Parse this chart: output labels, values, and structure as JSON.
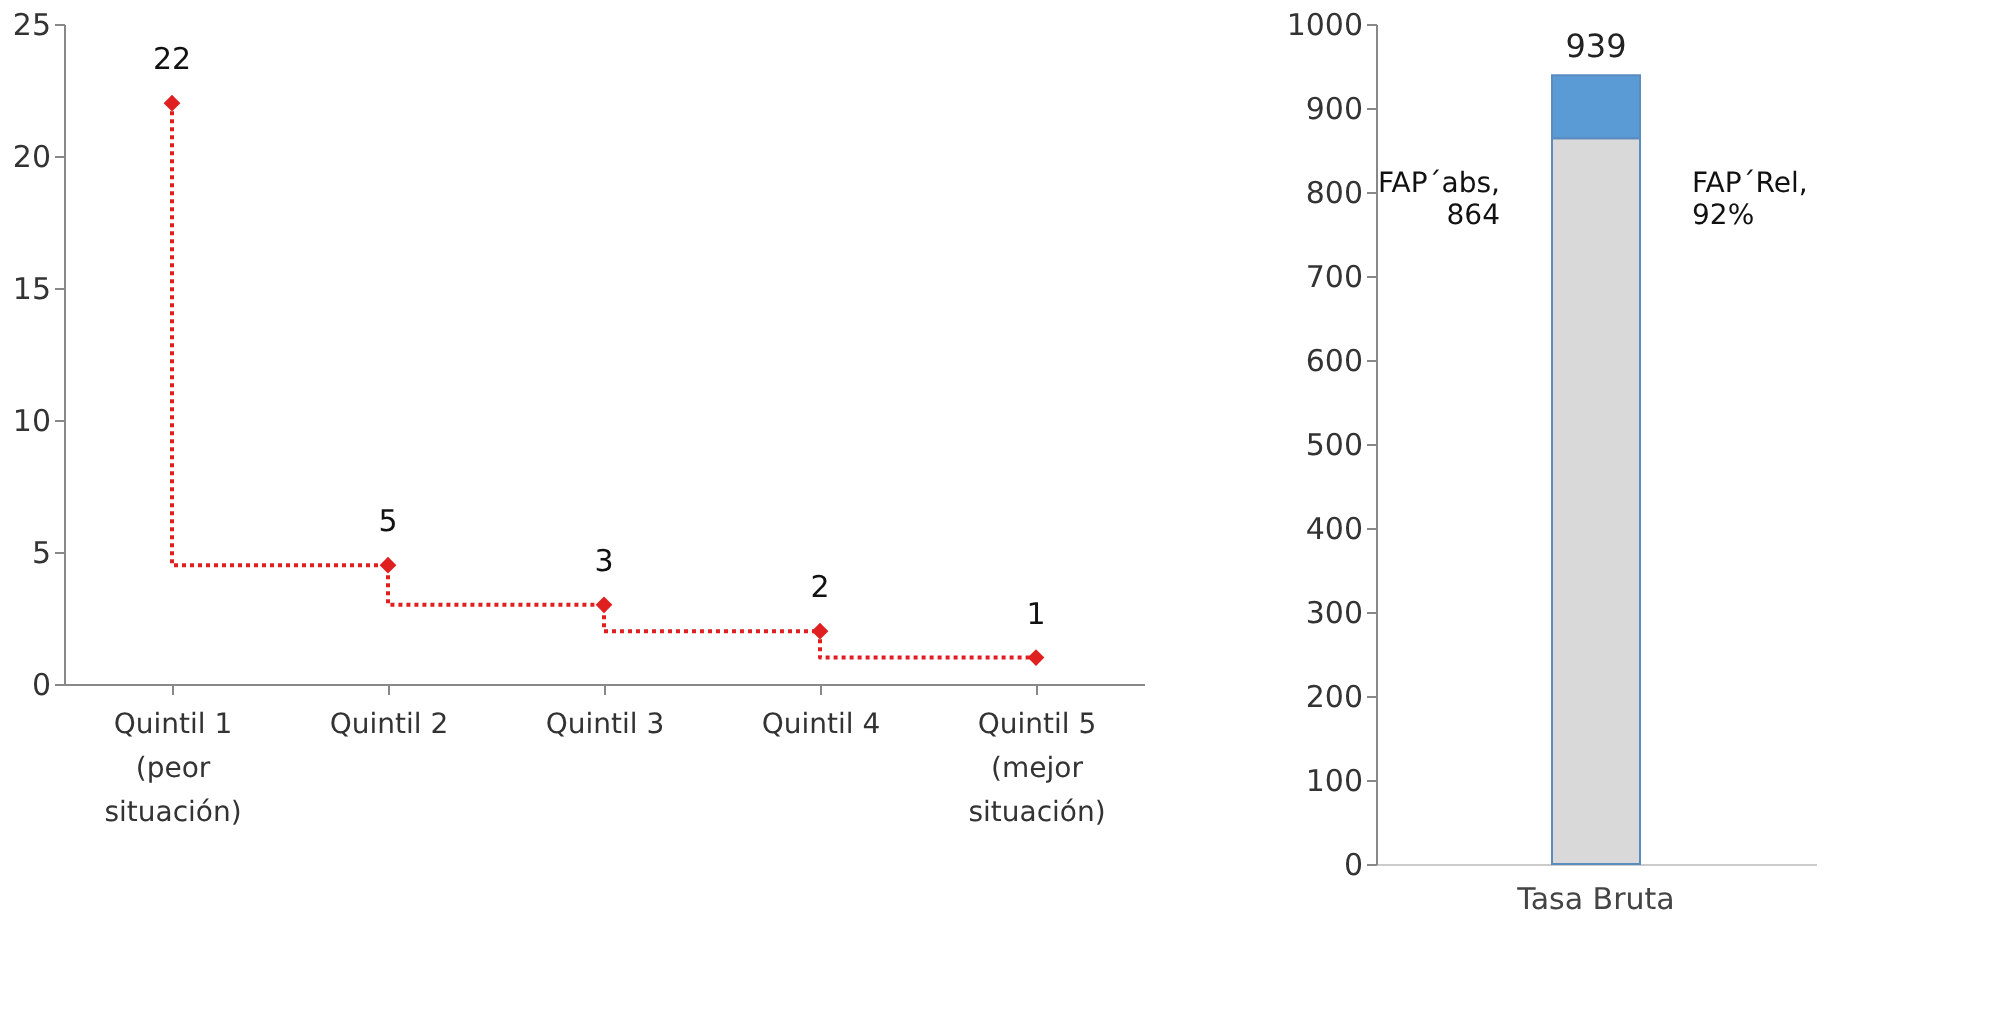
{
  "chart_data": [
    {
      "type": "step",
      "categories": [
        "Quintil 1\n(peor\nsituación)",
        "Quintil 2",
        "Quintil 3",
        "Quintil 4",
        "Quintil 5\n(mejor\nsituación)"
      ],
      "series": [
        {
          "color": "#e02020",
          "values": [
            22,
            4.5,
            3,
            2,
            1
          ],
          "value_labels": [
            "22",
            "5",
            "3",
            "2",
            "1"
          ]
        }
      ],
      "ylim": [
        0,
        25
      ],
      "yticks": [
        0,
        5,
        10,
        15,
        20,
        25
      ],
      "marker": "diamond",
      "line_style": "dotted"
    },
    {
      "type": "bar",
      "stacked": true,
      "categories": [
        "Tasa Bruta"
      ],
      "series": [
        {
          "color": "#d9d9d9",
          "values": [
            864
          ]
        },
        {
          "color": "#5b9bd5",
          "values": [
            75
          ]
        }
      ],
      "totals": [
        "939"
      ],
      "annotations": [
        "FAP´abs, 864",
        "FAP´Rel, 92%"
      ],
      "ylim": [
        0,
        1000
      ],
      "yticks": [
        0,
        100,
        200,
        300,
        400,
        500,
        600,
        700,
        800,
        900,
        1000
      ]
    }
  ]
}
